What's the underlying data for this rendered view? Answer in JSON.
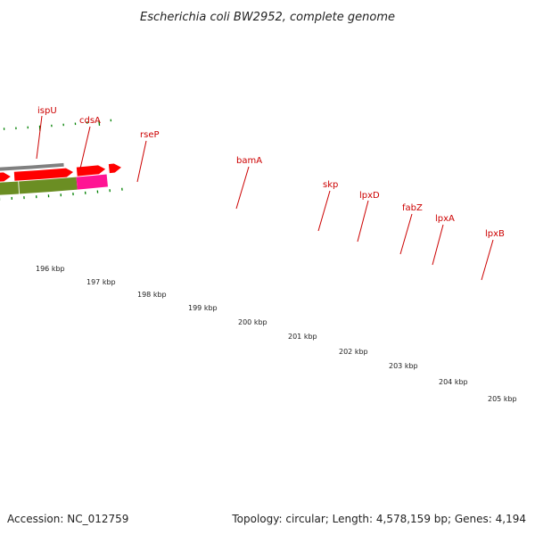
{
  "title": "Escherichia coli BW2952, complete genome",
  "footer": {
    "accession": "Accession: NC_012759",
    "summary": "Topology: circular; Length: 4,578,159 bp; Genes: 4,194"
  },
  "colors": {
    "cds_arrow": "#ff0000",
    "cog_purple": "#7766cc",
    "cog_green": "#6b8e23",
    "cog_pink": "#ff1493",
    "backbone": "#808080",
    "ticks": "#008000",
    "label": "#cc0000"
  },
  "gene_labels": [
    "ispU",
    "cdsA",
    "rseP",
    "bamA",
    "skp",
    "lpxD",
    "fabZ",
    "lpxA",
    "lpxB"
  ],
  "scale_labels": [
    "196 kbp",
    "197 kbp",
    "198 kbp",
    "199 kbp",
    "200 kbp",
    "201 kbp",
    "202 kbp",
    "203 kbp",
    "204 kbp",
    "205 kbp"
  ]
}
